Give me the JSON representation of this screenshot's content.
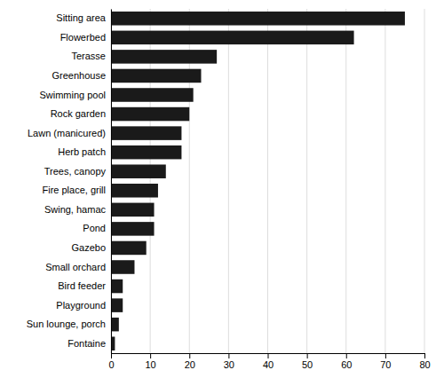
{
  "chart_data": {
    "type": "bar",
    "orientation": "horizontal",
    "categories": [
      "Fontaine",
      "Sun lounge, porch",
      "Playground",
      "Bird feeder",
      "Small orchard",
      "Gazebo",
      "Pond",
      "Swing, hamac",
      "Fire place, grill",
      "Trees, canopy",
      "Herb patch",
      "Lawn (manicured)",
      "Rock garden",
      "Swimming pool",
      "Greenhouse",
      "Terasse",
      "Flowerbed",
      "Sitting area"
    ],
    "values": [
      1,
      2,
      3,
      3,
      6,
      9,
      11,
      11,
      12,
      14,
      18,
      18,
      20,
      21,
      23,
      27,
      62,
      75
    ],
    "color": "#1a1a1a",
    "xlim": [
      0,
      80
    ],
    "xticks": [
      0,
      10,
      20,
      30,
      40,
      50,
      60,
      70,
      80
    ],
    "grid": true
  }
}
